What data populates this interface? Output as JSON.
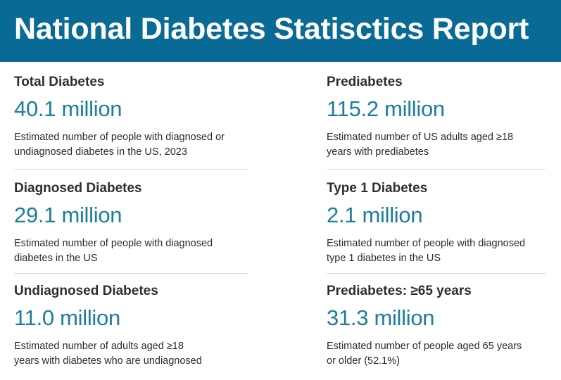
{
  "header": {
    "title": "National Diabetes Statisctics Report"
  },
  "colors": {
    "banner": "#0a6a96",
    "value": "#1a7e9c"
  },
  "stats": [
    {
      "label": "Total Diabetes",
      "value": "40.1 million",
      "desc_lines": [
        "Estimated number of people with diagnosed or",
        "undiagnosed diabetes in the US, 2023"
      ]
    },
    {
      "label": "Prediabetes",
      "value": "115.2 million",
      "desc_lines": [
        "Estimated number of US adults aged ≥18",
        "years with prediabetes"
      ]
    },
    {
      "label": "Diagnosed Diabetes",
      "value": "29.1 million",
      "desc_lines": [
        "Estimated number of people with diagnosed",
        "diabetes in the US"
      ]
    },
    {
      "label": "Type 1 Diabetes",
      "value": "2.1 million",
      "desc_lines": [
        "Estimated number of people with diagnosed",
        "type 1 diabetes in the US"
      ]
    },
    {
      "label": "Undiagnosed Diabetes",
      "value": "11.0 million",
      "desc_lines": [
        "Estimated number of adults aged ≥18",
        "years with diabetes who are undiagnosed"
      ]
    },
    {
      "label": "Prediabetes: ≥65 years",
      "value": "31.3 million",
      "desc_lines": [
        "Estimated number of people aged 65 years",
        "or older (52.1%)"
      ]
    }
  ]
}
